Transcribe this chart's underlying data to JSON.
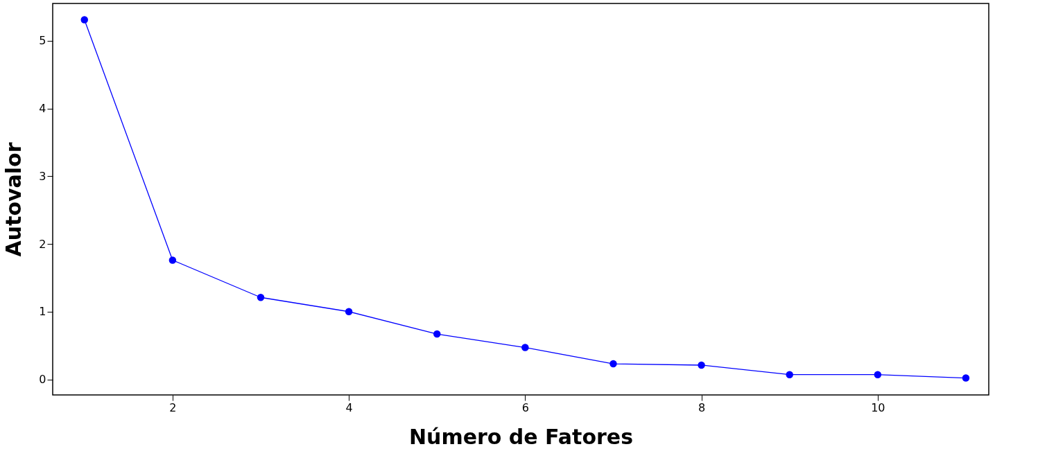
{
  "chart_data": {
    "type": "line",
    "xlabel": "Número de Fatores",
    "ylabel": "Autovalor",
    "x": [
      1,
      2,
      3,
      4,
      5,
      6,
      7,
      8,
      9,
      10,
      11
    ],
    "series": [
      {
        "color": "#0000ff",
        "values": [
          5.31,
          1.76,
          1.21,
          1.0,
          0.67,
          0.47,
          0.23,
          0.21,
          0.07,
          0.07,
          0.02
        ]
      }
    ],
    "xlim": [
      0.64,
      11.26
    ],
    "ylim": [
      -0.23,
      5.55
    ],
    "xticks": [
      2,
      4,
      6,
      8,
      10
    ],
    "yticks": [
      0,
      1,
      2,
      3,
      4,
      5
    ],
    "grid": false,
    "marker": "circle",
    "line_style": "solid"
  }
}
